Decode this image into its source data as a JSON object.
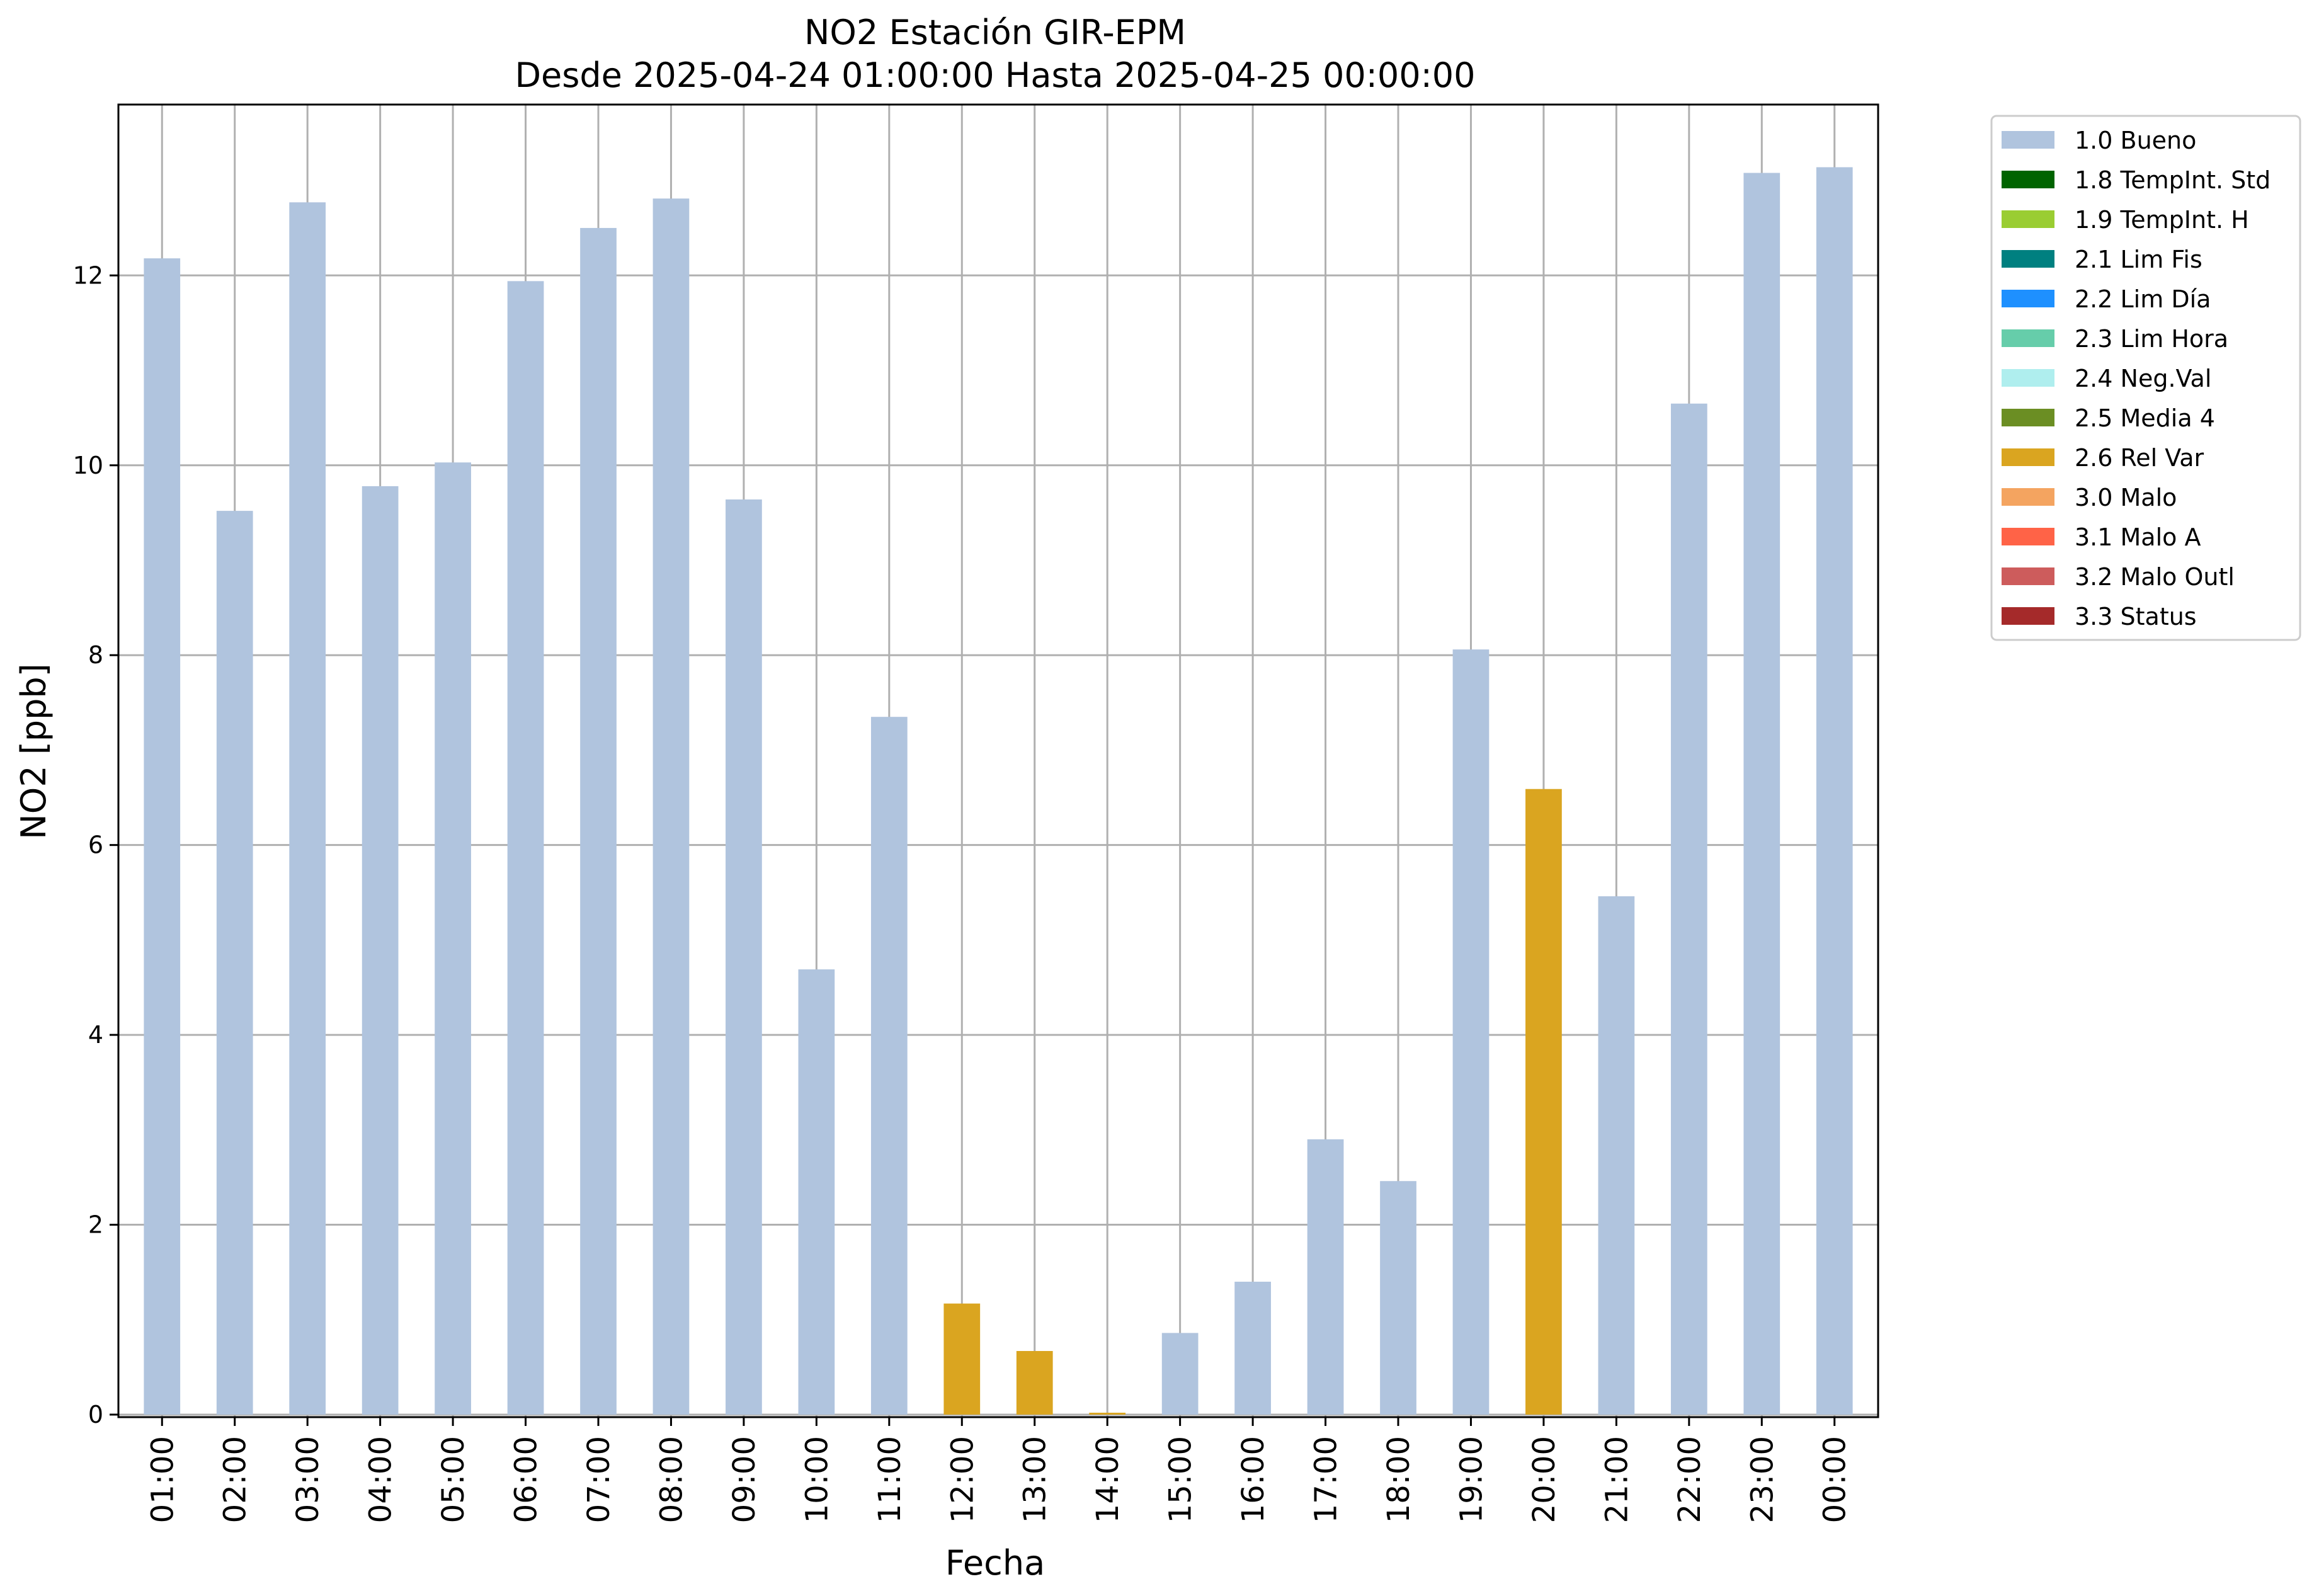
{
  "chart_data": {
    "type": "bar",
    "title": "NO2 Estación GIR-EPM",
    "subtitle": "Desde 2025-04-24 01:00:00 Hasta 2025-04-25 00:00:00",
    "xlabel": "Fecha",
    "ylabel": "NO2 [ppb]",
    "ylim": [
      0,
      13.8
    ],
    "yticks": [
      0,
      2,
      4,
      6,
      8,
      10,
      12
    ],
    "grid": true,
    "legend_position": "outside-right-top",
    "categories": [
      "01:00",
      "02:00",
      "03:00",
      "04:00",
      "05:00",
      "06:00",
      "07:00",
      "08:00",
      "09:00",
      "10:00",
      "11:00",
      "12:00",
      "13:00",
      "14:00",
      "15:00",
      "16:00",
      "17:00",
      "18:00",
      "19:00",
      "20:00",
      "21:00",
      "22:00",
      "23:00",
      "00:00"
    ],
    "values": [
      12.18,
      9.52,
      12.77,
      9.78,
      10.03,
      11.94,
      12.5,
      12.81,
      9.64,
      4.69,
      7.35,
      1.17,
      0.67,
      0.02,
      0.86,
      1.4,
      2.9,
      2.46,
      8.06,
      6.59,
      5.46,
      10.65,
      13.08,
      13.14
    ],
    "flags": [
      "1.0 Bueno",
      "1.0 Bueno",
      "1.0 Bueno",
      "1.0 Bueno",
      "1.0 Bueno",
      "1.0 Bueno",
      "1.0 Bueno",
      "1.0 Bueno",
      "1.0 Bueno",
      "1.0 Bueno",
      "1.0 Bueno",
      "2.6 Rel Var",
      "2.6 Rel Var",
      "2.6 Rel Var",
      "1.0 Bueno",
      "1.0 Bueno",
      "1.0 Bueno",
      "1.0 Bueno",
      "1.0 Bueno",
      "2.6 Rel Var",
      "1.0 Bueno",
      "1.0 Bueno",
      "1.0 Bueno",
      "1.0 Bueno"
    ],
    "legend": [
      {
        "label": "1.0 Bueno",
        "color": "#b0c4de"
      },
      {
        "label": "1.8 TempInt. Std",
        "color": "#006400"
      },
      {
        "label": "1.9 TempInt. H",
        "color": "#9acd32"
      },
      {
        "label": "2.1 Lim Fis",
        "color": "#008080"
      },
      {
        "label": "2.2 Lim Día",
        "color": "#1e90ff"
      },
      {
        "label": "2.3 Lim Hora",
        "color": "#66cdaa"
      },
      {
        "label": "2.4 Neg.Val",
        "color": "#afeeee"
      },
      {
        "label": "2.5 Media 4",
        "color": "#6b8e23"
      },
      {
        "label": "2.6 Rel Var",
        "color": "#daa520"
      },
      {
        "label": "3.0 Malo",
        "color": "#f4a460"
      },
      {
        "label": "3.1 Malo A",
        "color": "#ff6347"
      },
      {
        "label": "3.2 Malo Outl",
        "color": "#cd5c5c"
      },
      {
        "label": "3.3 Status",
        "color": "#a52a2a"
      }
    ]
  }
}
